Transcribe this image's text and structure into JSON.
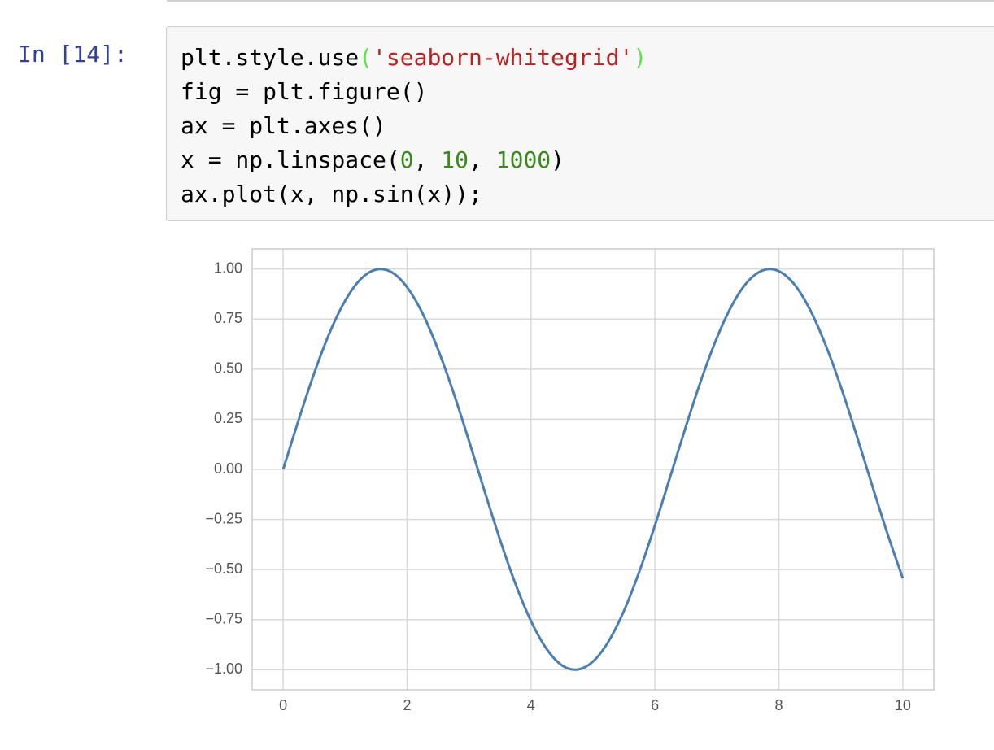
{
  "cell": {
    "prompt": "In [14]:",
    "code": [
      [
        {
          "text": "plt.style.use",
          "color": "#000000"
        },
        {
          "text": "(",
          "color": "#5ee04a"
        },
        {
          "text": "'seaborn-whitegrid'",
          "color": "#ba2121"
        },
        {
          "text": ")",
          "color": "#5ee04a"
        }
      ],
      [
        {
          "text": "fig = plt.figure()",
          "color": "#000000"
        }
      ],
      [
        {
          "text": "ax = plt.axes()",
          "color": "#000000"
        }
      ],
      [
        {
          "text": "x = np.linspace(",
          "color": "#000000"
        },
        {
          "text": "0",
          "color": "#3a8a1a"
        },
        {
          "text": ", ",
          "color": "#000000"
        },
        {
          "text": "10",
          "color": "#3a8a1a"
        },
        {
          "text": ", ",
          "color": "#000000"
        },
        {
          "text": "1000",
          "color": "#3a8a1a"
        },
        {
          "text": ")",
          "color": "#000000"
        }
      ],
      [
        {
          "text": "ax.plot(x, np.sin(x));",
          "color": "#000000"
        }
      ]
    ]
  },
  "chart_data": {
    "type": "line",
    "x": [
      0,
      0.25,
      0.5,
      0.75,
      1,
      1.25,
      1.5,
      1.75,
      2,
      2.25,
      2.5,
      2.75,
      3,
      3.25,
      3.5,
      3.75,
      4,
      4.25,
      4.5,
      4.75,
      5,
      5.25,
      5.5,
      5.75,
      6,
      6.25,
      6.5,
      6.75,
      7,
      7.25,
      7.5,
      7.75,
      8,
      8.25,
      8.5,
      8.75,
      9,
      9.25,
      9.5,
      9.75,
      10
    ],
    "values": [
      0,
      0.247,
      0.479,
      0.682,
      0.841,
      0.949,
      0.997,
      0.984,
      0.909,
      0.778,
      0.598,
      0.382,
      0.141,
      -0.108,
      -0.351,
      -0.572,
      -0.757,
      -0.895,
      -0.978,
      -0.999,
      -0.959,
      -0.859,
      -0.706,
      -0.508,
      -0.279,
      -0.033,
      0.215,
      0.45,
      0.657,
      0.823,
      0.938,
      0.994,
      0.989,
      0.923,
      0.798,
      0.624,
      0.412,
      0.174,
      -0.075,
      -0.319,
      -0.544
    ],
    "color": "#4a7fb5",
    "xlim": [
      -0.5,
      10.5
    ],
    "ylim": [
      -1.1,
      1.1
    ],
    "xticks": [
      0,
      2,
      4,
      6,
      8,
      10
    ],
    "yticks": [
      {
        "value": 1,
        "label": "1.00"
      },
      {
        "value": 0.75,
        "label": "0.75"
      },
      {
        "value": 0.5,
        "label": "0.50"
      },
      {
        "value": 0.25,
        "label": "0.25"
      },
      {
        "value": 0,
        "label": "0.00"
      },
      {
        "value": -0.25,
        "label": "−0.25"
      },
      {
        "value": -0.5,
        "label": "−0.50"
      },
      {
        "value": -0.75,
        "label": "−0.75"
      },
      {
        "value": -1,
        "label": "−1.00"
      }
    ],
    "grid": true
  }
}
